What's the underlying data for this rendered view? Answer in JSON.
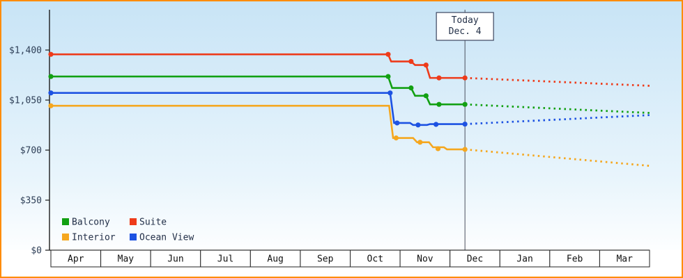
{
  "frame": {
    "border_color": "#ff8c00",
    "bg_gradient_top": "#c8e4f6",
    "bg_gradient_bottom": "#ffffff",
    "text_color": "#233048"
  },
  "chart_data": {
    "type": "line",
    "title": "",
    "x_months_span": 12,
    "x_tick_labels": [
      "Apr",
      "May",
      "Jun",
      "Jul",
      "Aug",
      "Sep",
      "Oct",
      "Nov",
      "Dec",
      "Jan",
      "Feb",
      "Mar"
    ],
    "y_ticks": [
      {
        "value": 1400,
        "label": "$1,400"
      },
      {
        "value": 1050,
        "label": "$1,050"
      },
      {
        "value": 700,
        "label": "$700"
      },
      {
        "value": 350,
        "label": "$350"
      },
      {
        "value": 0,
        "label": "$0"
      }
    ],
    "y_axis_max_value": 1680,
    "grid": false,
    "legend_position": "bottom-left",
    "today": {
      "x": 8.3,
      "label_top": "Today",
      "label_bottom": "Dec. 4"
    },
    "series": [
      {
        "name": "Balcony",
        "color": "#12a012",
        "points": [
          [
            0,
            1215
          ],
          [
            6.76,
            1215
          ],
          [
            6.84,
            1135
          ],
          [
            7.22,
            1135
          ],
          [
            7.3,
            1080
          ],
          [
            7.52,
            1080
          ],
          [
            7.6,
            1020
          ],
          [
            8.3,
            1020
          ]
        ],
        "markers": [
          [
            0,
            1215
          ],
          [
            6.76,
            1215
          ],
          [
            7.22,
            1135
          ],
          [
            7.52,
            1080
          ],
          [
            7.78,
            1020
          ],
          [
            8.3,
            1020
          ]
        ],
        "forecast": [
          [
            8.3,
            1020
          ],
          [
            12,
            960
          ]
        ]
      },
      {
        "name": "Suite",
        "color": "#ee3b1a",
        "points": [
          [
            0,
            1370
          ],
          [
            6.76,
            1370
          ],
          [
            6.82,
            1320
          ],
          [
            7.22,
            1320
          ],
          [
            7.3,
            1295
          ],
          [
            7.52,
            1295
          ],
          [
            7.6,
            1205
          ],
          [
            8.3,
            1205
          ]
        ],
        "markers": [
          [
            0,
            1370
          ],
          [
            6.76,
            1370
          ],
          [
            7.22,
            1320
          ],
          [
            7.52,
            1295
          ],
          [
            7.78,
            1205
          ],
          [
            8.3,
            1205
          ]
        ],
        "forecast": [
          [
            8.3,
            1205
          ],
          [
            12,
            1150
          ]
        ]
      },
      {
        "name": "Interior",
        "color": "#f5a71f",
        "points": [
          [
            0,
            1010
          ],
          [
            6.78,
            1010
          ],
          [
            6.86,
            785
          ],
          [
            7.26,
            785
          ],
          [
            7.34,
            755
          ],
          [
            7.58,
            755
          ],
          [
            7.66,
            720
          ],
          [
            7.88,
            720
          ],
          [
            7.94,
            705
          ],
          [
            8.3,
            705
          ]
        ],
        "markers": [
          [
            0,
            1010
          ],
          [
            6.92,
            785
          ],
          [
            7.4,
            755
          ],
          [
            7.76,
            710
          ],
          [
            8.3,
            705
          ]
        ],
        "forecast": [
          [
            8.3,
            705
          ],
          [
            12,
            590
          ]
        ]
      },
      {
        "name": "Ocean View",
        "color": "#1d52e2",
        "points": [
          [
            0,
            1100
          ],
          [
            6.8,
            1100
          ],
          [
            6.88,
            890
          ],
          [
            7.2,
            890
          ],
          [
            7.26,
            876
          ],
          [
            7.54,
            876
          ],
          [
            7.6,
            882
          ],
          [
            8.3,
            882
          ]
        ],
        "markers": [
          [
            0,
            1100
          ],
          [
            6.8,
            1100
          ],
          [
            6.94,
            890
          ],
          [
            7.36,
            876
          ],
          [
            7.72,
            880
          ],
          [
            8.3,
            882
          ]
        ],
        "forecast": [
          [
            8.3,
            882
          ],
          [
            12,
            945
          ]
        ]
      }
    ],
    "legend_rows": [
      [
        "Balcony",
        "Suite"
      ],
      [
        "Interior",
        "Ocean View"
      ]
    ]
  }
}
